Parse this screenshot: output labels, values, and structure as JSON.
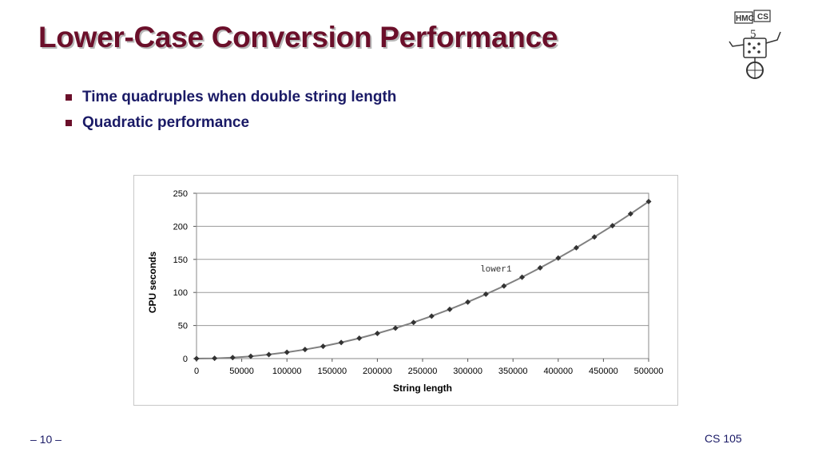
{
  "slide": {
    "title": "Lower-Case Conversion Performance",
    "bullets": [
      "Time quadruples when double string length",
      "Quadratic performance"
    ],
    "page_number": "– 10 –",
    "course": "CS 105"
  },
  "logo": {
    "text": "HMC CS"
  },
  "colors": {
    "title": "#6b0f2a",
    "text": "#1a1a66",
    "series": "#808080",
    "marker": "#333333"
  },
  "chart_data": {
    "type": "line",
    "xlabel": "String length",
    "ylabel": "CPU seconds",
    "xlim": [
      0,
      500000
    ],
    "ylim": [
      0,
      250
    ],
    "xticks": [
      0,
      50000,
      100000,
      150000,
      200000,
      250000,
      300000,
      350000,
      400000,
      450000,
      500000
    ],
    "yticks": [
      0,
      50,
      100,
      150,
      200,
      250
    ],
    "grid": true,
    "series": [
      {
        "name": "lower1",
        "x": [
          0,
          20000,
          40000,
          60000,
          80000,
          100000,
          120000,
          140000,
          160000,
          180000,
          200000,
          220000,
          240000,
          260000,
          280000,
          300000,
          320000,
          340000,
          360000,
          380000,
          400000,
          420000,
          440000,
          460000,
          480000,
          500000
        ],
        "y": [
          0,
          0.4,
          1.5,
          3.4,
          6.1,
          9.5,
          13.7,
          18.6,
          24.3,
          30.8,
          38,
          46,
          54.7,
          64.2,
          74.5,
          85.5,
          97.3,
          109.8,
          123.1,
          137.2,
          152,
          167.6,
          183.9,
          201,
          218.9,
          237.5
        ]
      }
    ]
  }
}
